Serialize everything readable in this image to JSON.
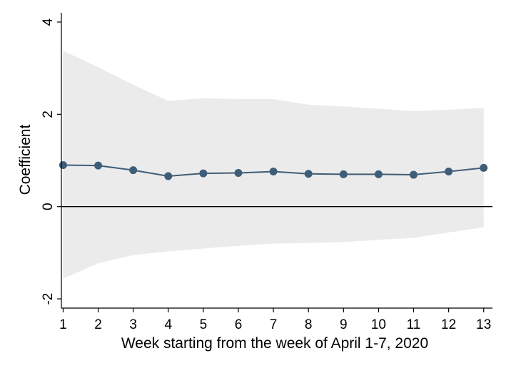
{
  "chart_data": {
    "type": "line",
    "xlabel": "Week starting from the week of April 1-7, 2020",
    "ylabel": "Coefficient",
    "x": [
      1,
      2,
      3,
      4,
      5,
      6,
      7,
      8,
      9,
      10,
      11,
      12,
      13
    ],
    "x_tick_labels": [
      "1",
      "2",
      "3",
      "4",
      "5",
      "6",
      "7",
      "8",
      "9",
      "10",
      "11",
      "12",
      "13"
    ],
    "y_ticks": [
      -2,
      0,
      2,
      4
    ],
    "y_tick_labels": [
      "-2",
      "0",
      "2",
      "4"
    ],
    "xlim": [
      0.95,
      13.25
    ],
    "ylim": [
      -2.2,
      4.2
    ],
    "series": [
      {
        "values": [
          0.9,
          0.89,
          0.79,
          0.66,
          0.72,
          0.73,
          0.76,
          0.71,
          0.7,
          0.7,
          0.69,
          0.76,
          0.84
        ],
        "ci_upper": [
          3.38,
          3.02,
          2.64,
          2.29,
          2.35,
          2.33,
          2.33,
          2.21,
          2.17,
          2.12,
          2.07,
          2.1,
          2.14
        ],
        "ci_lower": [
          -1.56,
          -1.23,
          -1.05,
          -0.97,
          -0.91,
          -0.85,
          -0.8,
          -0.79,
          -0.77,
          -0.72,
          -0.68,
          -0.56,
          -0.45
        ]
      }
    ],
    "reference_line_y": 0,
    "grid": false,
    "colors": {
      "line": "#3e5d78",
      "marker": "#3e5d78",
      "ci_band": "#ebebeb",
      "reference_line": "#000000",
      "axis": "#000000"
    }
  }
}
